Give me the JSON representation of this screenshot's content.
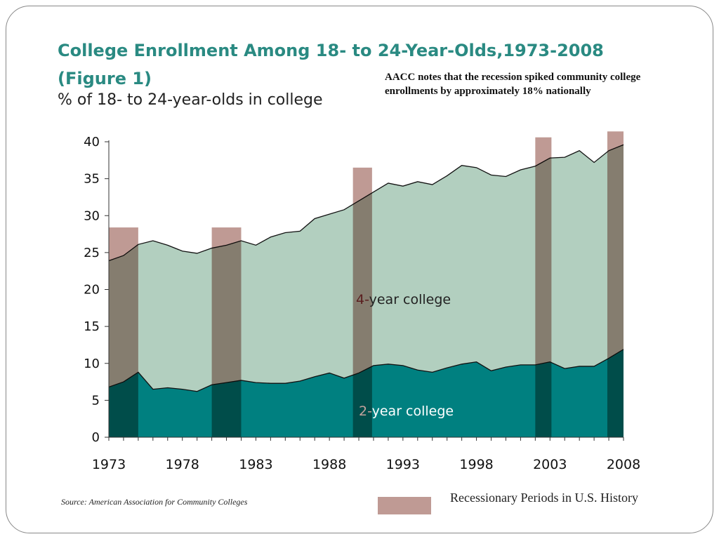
{
  "chart_data": {
    "type": "area",
    "title": "College Enrollment Among 18- to 24-Year-Olds,1973-2008",
    "title_line2": "(Figure 1)",
    "ylabel": "% of 18- to 24-year-olds in college",
    "annotation": "AACC notes that the recession spiked community college enrollments by approximately 18% nationally",
    "ylim": [
      0,
      40
    ],
    "xlim": [
      1973,
      2008
    ],
    "yticks": [
      "0",
      "5",
      "10",
      "15",
      "20",
      "25",
      "30",
      "35",
      "40"
    ],
    "xticks": [
      "1973",
      "1978",
      "1983",
      "1988",
      "1993",
      "1998",
      "2003",
      "2008"
    ],
    "x": [
      1973,
      1974,
      1975,
      1976,
      1977,
      1978,
      1979,
      1980,
      1981,
      1982,
      1983,
      1984,
      1985,
      1986,
      1987,
      1988,
      1989,
      1990,
      1991,
      1992,
      1993,
      1994,
      1995,
      1996,
      1997,
      1998,
      1999,
      2000,
      2001,
      2002,
      2003,
      2004,
      2005,
      2006,
      2007,
      2008
    ],
    "series": [
      {
        "name": "2-year college",
        "label_prefix": "2-",
        "label_rest": "year college",
        "color": "#008080",
        "values": [
          6.8,
          7.5,
          8.8,
          6.5,
          6.7,
          6.5,
          6.2,
          7.1,
          7.4,
          7.7,
          7.4,
          7.3,
          7.3,
          7.6,
          8.2,
          8.7,
          8.0,
          8.7,
          9.7,
          9.9,
          9.7,
          9.1,
          8.8,
          9.4,
          9.9,
          10.2,
          9.0,
          9.5,
          9.8,
          9.8,
          10.2,
          9.3,
          9.6,
          9.6,
          10.7,
          11.9
        ]
      },
      {
        "name": "4-year college",
        "label_prefix": "4-",
        "label_rest": "year college",
        "color": "#b2cfbf",
        "total_values": [
          23.9,
          24.6,
          26.1,
          26.6,
          26.0,
          25.2,
          24.9,
          25.6,
          26.0,
          26.6,
          26.0,
          27.1,
          27.7,
          27.9,
          29.6,
          30.2,
          30.8,
          32.0,
          33.2,
          34.4,
          34.0,
          34.6,
          34.2,
          35.4,
          36.8,
          36.5,
          35.5,
          35.3,
          36.2,
          36.7,
          37.8,
          37.9,
          38.8,
          37.2,
          38.8,
          39.6
        ]
      }
    ],
    "recessions": [
      {
        "start": 1973,
        "end": 1975,
        "top": 28.4
      },
      {
        "start": 1980,
        "end": 1982,
        "top": 28.4
      },
      {
        "start": 1989.6,
        "end": 1990.9,
        "top": 36.5
      },
      {
        "start": 2002,
        "end": 2003.1,
        "top": 40.6
      },
      {
        "start": 2006.9,
        "end": 2008,
        "top": 41.4
      }
    ],
    "recession_color": "#bf9a94",
    "legend": "Recessionary Periods in U.S. History",
    "legend_placement": "bottom-right",
    "source": "Source: American Association for Community Colleges"
  }
}
